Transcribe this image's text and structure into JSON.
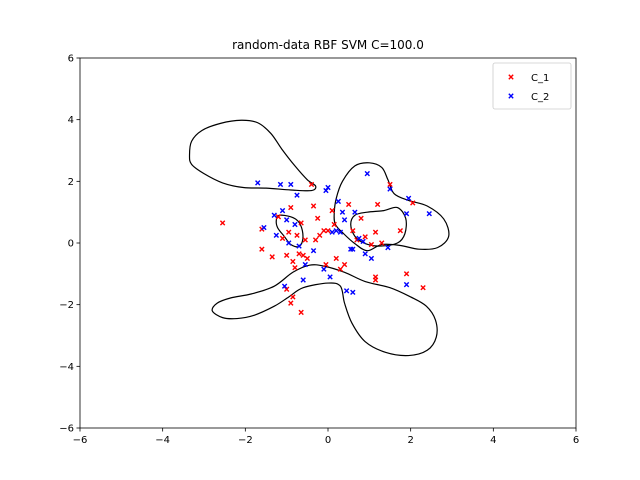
{
  "chart_data": {
    "type": "scatter",
    "title": "random-data RBF SVM  C=100.0",
    "xlabel": "",
    "ylabel": "",
    "xlim": [
      -6,
      6
    ],
    "ylim": [
      -6,
      6
    ],
    "xticks": [
      -6,
      -4,
      -2,
      0,
      2,
      4,
      6
    ],
    "yticks": [
      -6,
      -4,
      -2,
      0,
      2,
      4,
      6
    ],
    "grid": false,
    "legend_position": "top-right",
    "series": [
      {
        "name": "C_1",
        "color": "#ff0000",
        "marker": "x",
        "points": [
          [
            -2.55,
            0.65
          ],
          [
            -1.6,
            0.45
          ],
          [
            -1.6,
            -0.2
          ],
          [
            -1.35,
            -0.45
          ],
          [
            -1.2,
            0.85
          ],
          [
            -1.1,
            0.15
          ],
          [
            -1.0,
            -0.4
          ],
          [
            -0.95,
            0.35
          ],
          [
            -0.9,
            1.15
          ],
          [
            -0.85,
            -0.6
          ],
          [
            -0.8,
            -0.8
          ],
          [
            -0.75,
            0.25
          ],
          [
            -0.7,
            -0.35
          ],
          [
            -0.65,
            0.65
          ],
          [
            -0.6,
            -0.4
          ],
          [
            -0.55,
            0.1
          ],
          [
            -0.5,
            -0.5
          ],
          [
            -0.4,
            1.9
          ],
          [
            -0.35,
            1.2
          ],
          [
            -0.3,
            0.1
          ],
          [
            -0.25,
            0.8
          ],
          [
            -0.2,
            0.25
          ],
          [
            -0.1,
            0.4
          ],
          [
            -0.05,
            -0.7
          ],
          [
            0.0,
            0.4
          ],
          [
            0.1,
            1.05
          ],
          [
            0.15,
            0.6
          ],
          [
            0.2,
            -0.5
          ],
          [
            0.3,
            -0.85
          ],
          [
            0.4,
            -0.7
          ],
          [
            0.5,
            1.25
          ],
          [
            0.6,
            0.4
          ],
          [
            0.7,
            0.1
          ],
          [
            0.8,
            0.8
          ],
          [
            0.9,
            0.2
          ],
          [
            1.05,
            -0.05
          ],
          [
            1.15,
            0.35
          ],
          [
            1.2,
            1.25
          ],
          [
            1.3,
            0.0
          ],
          [
            1.5,
            1.9
          ],
          [
            1.75,
            0.4
          ],
          [
            1.9,
            -1.0
          ],
          [
            2.05,
            1.3
          ],
          [
            2.3,
            -1.45
          ],
          [
            1.15,
            -1.1
          ],
          [
            -0.85,
            -1.75
          ],
          [
            -0.9,
            -1.95
          ],
          [
            -0.65,
            -2.25
          ],
          [
            -1.0,
            -1.5
          ],
          [
            1.15,
            -1.2
          ]
        ]
      },
      {
        "name": "C_2",
        "color": "#0000ff",
        "marker": "x",
        "points": [
          [
            -1.7,
            1.95
          ],
          [
            -1.55,
            0.5
          ],
          [
            -1.3,
            0.9
          ],
          [
            -1.25,
            0.25
          ],
          [
            -1.15,
            1.9
          ],
          [
            -1.1,
            1.05
          ],
          [
            -1.0,
            0.75
          ],
          [
            -0.95,
            -0.0
          ],
          [
            -0.9,
            1.9
          ],
          [
            -0.8,
            0.6
          ],
          [
            -0.75,
            1.55
          ],
          [
            -0.7,
            -0.1
          ],
          [
            -0.6,
            -1.2
          ],
          [
            -0.55,
            -0.7
          ],
          [
            -0.35,
            -0.25
          ],
          [
            -0.1,
            -0.85
          ],
          [
            -0.05,
            1.7
          ],
          [
            0.0,
            1.8
          ],
          [
            0.05,
            -1.1
          ],
          [
            0.1,
            0.35
          ],
          [
            0.2,
            0.4
          ],
          [
            0.25,
            1.35
          ],
          [
            0.35,
            1.0
          ],
          [
            0.4,
            0.75
          ],
          [
            0.45,
            -1.55
          ],
          [
            0.55,
            -0.2
          ],
          [
            0.6,
            -0.2
          ],
          [
            0.65,
            1.0
          ],
          [
            0.75,
            0.15
          ],
          [
            0.85,
            0.05
          ],
          [
            0.9,
            -0.35
          ],
          [
            0.95,
            2.25
          ],
          [
            1.05,
            -0.5
          ],
          [
            1.5,
            1.75
          ],
          [
            1.9,
            0.95
          ],
          [
            1.95,
            1.45
          ],
          [
            2.45,
            0.95
          ],
          [
            1.9,
            -1.35
          ],
          [
            0.6,
            -1.6
          ],
          [
            -1.05,
            -1.4
          ],
          [
            0.3,
            0.35
          ],
          [
            1.45,
            -0.15
          ]
        ]
      }
    ],
    "decision_boundary": [
      [
        [
          -1.18,
          0.9
        ],
        [
          -0.9,
          0.85
        ],
        [
          -0.72,
          0.7
        ],
        [
          -0.62,
          0.4
        ],
        [
          -0.62,
          0.05
        ],
        [
          -0.72,
          -0.12
        ],
        [
          -0.9,
          -0.05
        ],
        [
          -1.05,
          0.2
        ],
        [
          -1.22,
          0.5
        ],
        [
          -1.25,
          0.75
        ],
        [
          -1.18,
          0.9
        ]
      ],
      [
        [
          -3.35,
          2.85
        ],
        [
          -3.3,
          3.3
        ],
        [
          -3.05,
          3.65
        ],
        [
          -2.6,
          3.88
        ],
        [
          -2.1,
          3.98
        ],
        [
          -1.7,
          3.9
        ],
        [
          -1.38,
          3.55
        ],
        [
          -1.12,
          3.05
        ],
        [
          -0.8,
          2.5
        ],
        [
          -0.5,
          2.05
        ],
        [
          -0.3,
          1.85
        ],
        [
          -0.4,
          1.7
        ],
        [
          -0.9,
          1.72
        ],
        [
          -1.5,
          1.78
        ],
        [
          -2.05,
          1.8
        ],
        [
          -2.55,
          1.95
        ],
        [
          -3.0,
          2.25
        ],
        [
          -3.3,
          2.55
        ],
        [
          -3.35,
          2.85
        ]
      ],
      [
        [
          -2.8,
          -2.2
        ],
        [
          -2.55,
          -2.42
        ],
        [
          -2.2,
          -2.45
        ],
        [
          -1.8,
          -2.35
        ],
        [
          -1.3,
          -2.05
        ],
        [
          -0.95,
          -1.75
        ],
        [
          -0.6,
          -1.45
        ],
        [
          0.0,
          -1.3
        ],
        [
          0.3,
          -1.4
        ],
        [
          0.4,
          -1.95
        ],
        [
          0.58,
          -2.6
        ],
        [
          0.9,
          -3.2
        ],
        [
          1.4,
          -3.55
        ],
        [
          1.95,
          -3.65
        ],
        [
          2.4,
          -3.48
        ],
        [
          2.62,
          -3.05
        ],
        [
          2.6,
          -2.5
        ],
        [
          2.38,
          -2.05
        ],
        [
          2.0,
          -1.75
        ],
        [
          1.5,
          -1.45
        ],
        [
          0.9,
          -1.25
        ],
        [
          0.4,
          -0.95
        ],
        [
          -0.1,
          -0.75
        ],
        [
          -0.45,
          -0.72
        ],
        [
          -0.85,
          -0.95
        ],
        [
          -1.3,
          -1.4
        ],
        [
          -1.85,
          -1.65
        ],
        [
          -2.35,
          -1.78
        ],
        [
          -2.68,
          -1.95
        ],
        [
          -2.8,
          -2.2
        ]
      ],
      [
        [
          0.15,
          0.95
        ],
        [
          0.2,
          1.45
        ],
        [
          0.35,
          2.0
        ],
        [
          0.65,
          2.5
        ],
        [
          1.0,
          2.6
        ],
        [
          1.3,
          2.45
        ],
        [
          1.45,
          2.05
        ],
        [
          1.6,
          1.6
        ],
        [
          1.95,
          1.38
        ],
        [
          2.4,
          1.2
        ],
        [
          2.8,
          0.78
        ],
        [
          2.92,
          0.22
        ],
        [
          2.65,
          -0.15
        ],
        [
          2.2,
          -0.2
        ],
        [
          1.75,
          -0.08
        ],
        [
          1.3,
          -0.05
        ],
        [
          0.95,
          -0.25
        ],
        [
          0.65,
          -0.02
        ],
        [
          0.38,
          0.3
        ],
        [
          0.18,
          0.6
        ],
        [
          0.15,
          0.95
        ]
      ],
      [
        [
          0.55,
          0.6
        ],
        [
          0.65,
          0.9
        ],
        [
          0.95,
          1.0
        ],
        [
          1.35,
          1.05
        ],
        [
          1.68,
          1.15
        ],
        [
          1.88,
          0.8
        ],
        [
          1.86,
          0.3
        ],
        [
          1.68,
          0.0
        ],
        [
          1.25,
          -0.1
        ],
        [
          0.9,
          -0.02
        ],
        [
          0.65,
          0.22
        ],
        [
          0.55,
          0.6
        ]
      ]
    ]
  }
}
